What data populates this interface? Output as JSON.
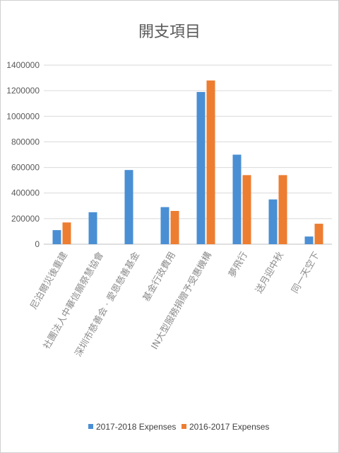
{
  "chart_data": {
    "type": "bar",
    "title": "開支項目",
    "xlabel": "",
    "ylabel": "",
    "ylim": [
      0,
      1400000
    ],
    "yticks": [
      "0",
      "200000",
      "400000",
      "600000",
      "800000",
      "1000000",
      "1200000",
      "1400000"
    ],
    "grid": true,
    "legend_position": "bottom",
    "categories": [
      "尼泊爾災後重建",
      "社團法人中華信願祭慧協會",
      "深圳市慈善会 · 愛恩慈善基金",
      "基金行政費用",
      "IN大型服務捐贈予受惠機構",
      "夢飛行",
      "送月迎中秋",
      "同一天空下"
    ],
    "series": [
      {
        "name": "2017-2018 Expenses",
        "color": "#4a8fd4",
        "values": [
          110000,
          250000,
          580000,
          290000,
          1190000,
          700000,
          350000,
          60000
        ]
      },
      {
        "name": "2016-2017 Expenses",
        "color": "#ed7d31",
        "values": [
          170000,
          null,
          null,
          260000,
          1280000,
          540000,
          540000,
          160000
        ]
      }
    ]
  }
}
